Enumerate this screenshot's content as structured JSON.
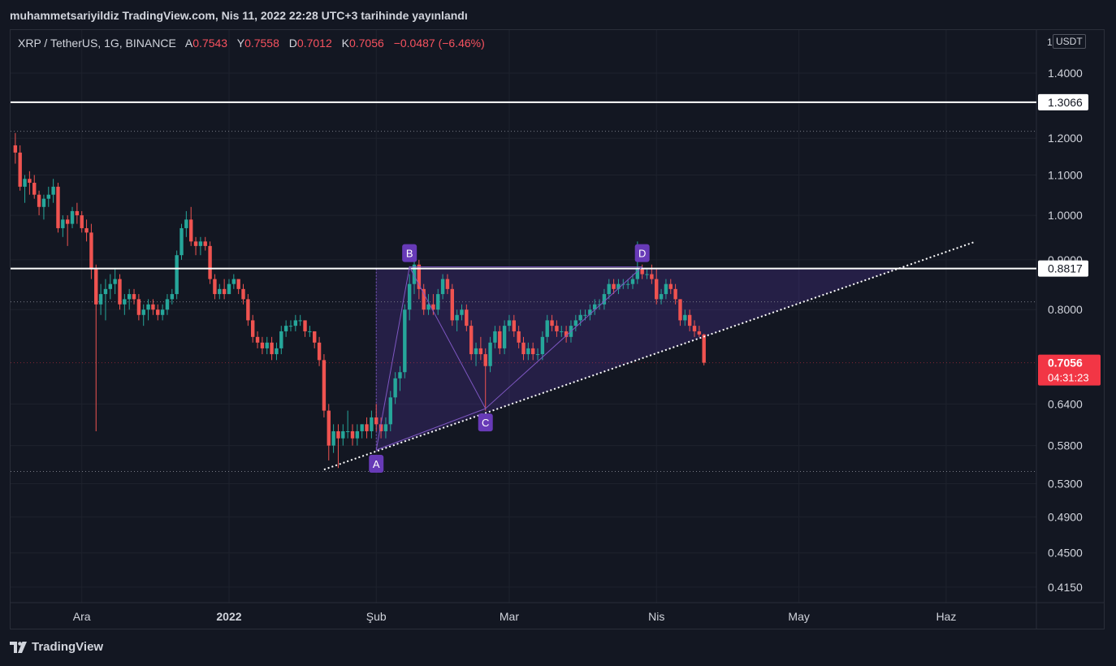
{
  "header": {
    "caption": "muhammetsariyildiz TradingView.com, Nis 11, 2022 22:28 UTC+3 tarihinde yayınlandı"
  },
  "legend": {
    "symbol": "XRP / TetherUS, 1G, BINANCE",
    "open_key": "A",
    "open": "0.7543",
    "high_key": "Y",
    "high": "0.7558",
    "low_key": "D",
    "low": "0.7012",
    "close_key": "K",
    "close": "0.7056",
    "change": "−0.0487 (−6.46%)"
  },
  "unit": {
    "prefix": "1",
    "label": "USDT"
  },
  "footer": {
    "brand": "TradingView"
  },
  "colors": {
    "background": "#131722",
    "up": "#26a69a",
    "down": "#ef5350",
    "pattern_fill": "#6a3fc8",
    "label_bg": "#673ab7",
    "last_price_bg": "#f23645"
  },
  "chart_data": {
    "type": "candlestick",
    "scale": "log",
    "ylim": [
      0.4,
      1.55
    ],
    "y_ticks": [
      "1.4000",
      "1.2000",
      "1.1000",
      "1.0000",
      "0.9000",
      "0.8000",
      "0.6400",
      "0.5800",
      "0.5300",
      "0.4900",
      "0.4500",
      "0.4150"
    ],
    "x_ticks": [
      {
        "label": "Ara",
        "date": "2021-12-01"
      },
      {
        "label": "2022",
        "date": "2022-01-01"
      },
      {
        "label": "Şub",
        "date": "2022-02-01"
      },
      {
        "label": "Mar",
        "date": "2022-03-01"
      },
      {
        "label": "Nis",
        "date": "2022-04-01"
      },
      {
        "label": "May",
        "date": "2022-05-01"
      },
      {
        "label": "Haz",
        "date": "2022-06-01"
      }
    ],
    "date_range": [
      "2021-11-16",
      "2022-06-20"
    ],
    "candles": [
      [
        "2021-11-17",
        1.18,
        1.215,
        1.13,
        1.16
      ],
      [
        "2021-11-18",
        1.16,
        1.18,
        1.06,
        1.07
      ],
      [
        "2021-11-19",
        1.07,
        1.1,
        1.03,
        1.09
      ],
      [
        "2021-11-20",
        1.09,
        1.11,
        1.05,
        1.08
      ],
      [
        "2021-11-21",
        1.08,
        1.1,
        1.04,
        1.05
      ],
      [
        "2021-11-22",
        1.05,
        1.06,
        1.0,
        1.02
      ],
      [
        "2021-11-23",
        1.02,
        1.05,
        0.99,
        1.04
      ],
      [
        "2021-11-24",
        1.04,
        1.07,
        1.02,
        1.05
      ],
      [
        "2021-11-25",
        1.05,
        1.09,
        1.03,
        1.07
      ],
      [
        "2021-11-26",
        1.07,
        1.08,
        0.96,
        0.97
      ],
      [
        "2021-11-27",
        0.97,
        1.0,
        0.95,
        0.99
      ],
      [
        "2021-11-28",
        0.99,
        1.0,
        0.93,
        0.98
      ],
      [
        "2021-11-29",
        0.98,
        1.02,
        0.97,
        1.01
      ],
      [
        "2021-11-30",
        1.01,
        1.03,
        0.98,
        1.0
      ],
      [
        "2021-12-01",
        1.0,
        1.01,
        0.96,
        0.97
      ],
      [
        "2021-12-02",
        0.97,
        0.99,
        0.94,
        0.96
      ],
      [
        "2021-12-03",
        0.96,
        0.98,
        0.86,
        0.88
      ],
      [
        "2021-12-04",
        0.88,
        0.89,
        0.6,
        0.81
      ],
      [
        "2021-12-05",
        0.81,
        0.85,
        0.79,
        0.83
      ],
      [
        "2021-12-06",
        0.83,
        0.86,
        0.78,
        0.84
      ],
      [
        "2021-12-07",
        0.84,
        0.87,
        0.82,
        0.85
      ],
      [
        "2021-12-08",
        0.85,
        0.88,
        0.83,
        0.86
      ],
      [
        "2021-12-09",
        0.86,
        0.87,
        0.8,
        0.81
      ],
      [
        "2021-12-10",
        0.81,
        0.83,
        0.79,
        0.82
      ],
      [
        "2021-12-11",
        0.82,
        0.84,
        0.8,
        0.83
      ],
      [
        "2021-12-12",
        0.83,
        0.84,
        0.81,
        0.82
      ],
      [
        "2021-12-13",
        0.82,
        0.83,
        0.78,
        0.79
      ],
      [
        "2021-12-14",
        0.79,
        0.81,
        0.77,
        0.8
      ],
      [
        "2021-12-15",
        0.8,
        0.82,
        0.78,
        0.81
      ],
      [
        "2021-12-16",
        0.81,
        0.82,
        0.79,
        0.8
      ],
      [
        "2021-12-17",
        0.8,
        0.81,
        0.78,
        0.79
      ],
      [
        "2021-12-18",
        0.79,
        0.81,
        0.78,
        0.8
      ],
      [
        "2021-12-19",
        0.8,
        0.83,
        0.79,
        0.82
      ],
      [
        "2021-12-20",
        0.82,
        0.84,
        0.81,
        0.83
      ],
      [
        "2021-12-21",
        0.83,
        0.92,
        0.82,
        0.91
      ],
      [
        "2021-12-22",
        0.91,
        0.98,
        0.9,
        0.97
      ],
      [
        "2021-12-23",
        0.97,
        1.01,
        0.95,
        0.99
      ],
      [
        "2021-12-24",
        0.99,
        1.02,
        0.93,
        0.94
      ],
      [
        "2021-12-25",
        0.94,
        0.95,
        0.91,
        0.93
      ],
      [
        "2021-12-26",
        0.93,
        0.95,
        0.91,
        0.94
      ],
      [
        "2021-12-27",
        0.94,
        0.95,
        0.92,
        0.93
      ],
      [
        "2021-12-28",
        0.93,
        0.94,
        0.85,
        0.86
      ],
      [
        "2021-12-29",
        0.86,
        0.87,
        0.82,
        0.83
      ],
      [
        "2021-12-30",
        0.83,
        0.85,
        0.82,
        0.84
      ],
      [
        "2021-12-31",
        0.84,
        0.86,
        0.82,
        0.83
      ],
      [
        "2022-01-01",
        0.83,
        0.86,
        0.83,
        0.85
      ],
      [
        "2022-01-02",
        0.85,
        0.87,
        0.84,
        0.86
      ],
      [
        "2022-01-03",
        0.86,
        0.86,
        0.83,
        0.84
      ],
      [
        "2022-01-04",
        0.84,
        0.85,
        0.81,
        0.82
      ],
      [
        "2022-01-05",
        0.82,
        0.83,
        0.77,
        0.78
      ],
      [
        "2022-01-06",
        0.78,
        0.79,
        0.74,
        0.75
      ],
      [
        "2022-01-07",
        0.75,
        0.76,
        0.73,
        0.74
      ],
      [
        "2022-01-08",
        0.74,
        0.75,
        0.72,
        0.73
      ],
      [
        "2022-01-09",
        0.73,
        0.75,
        0.72,
        0.74
      ],
      [
        "2022-01-10",
        0.74,
        0.75,
        0.71,
        0.72
      ],
      [
        "2022-01-11",
        0.72,
        0.74,
        0.71,
        0.73
      ],
      [
        "2022-01-12",
        0.73,
        0.77,
        0.72,
        0.76
      ],
      [
        "2022-01-13",
        0.76,
        0.78,
        0.75,
        0.77
      ],
      [
        "2022-01-14",
        0.77,
        0.78,
        0.76,
        0.77
      ],
      [
        "2022-01-15",
        0.77,
        0.79,
        0.76,
        0.78
      ],
      [
        "2022-01-16",
        0.78,
        0.79,
        0.77,
        0.78
      ],
      [
        "2022-01-17",
        0.78,
        0.78,
        0.75,
        0.76
      ],
      [
        "2022-01-18",
        0.76,
        0.77,
        0.75,
        0.76
      ],
      [
        "2022-01-19",
        0.76,
        0.76,
        0.73,
        0.74
      ],
      [
        "2022-01-20",
        0.74,
        0.75,
        0.7,
        0.71
      ],
      [
        "2022-01-21",
        0.71,
        0.72,
        0.62,
        0.63
      ],
      [
        "2022-01-22",
        0.63,
        0.64,
        0.56,
        0.58
      ],
      [
        "2022-01-23",
        0.58,
        0.61,
        0.57,
        0.6
      ],
      [
        "2022-01-24",
        0.6,
        0.61,
        0.55,
        0.59
      ],
      [
        "2022-01-25",
        0.59,
        0.61,
        0.58,
        0.6
      ],
      [
        "2022-01-26",
        0.6,
        0.63,
        0.59,
        0.6
      ],
      [
        "2022-01-27",
        0.6,
        0.61,
        0.58,
        0.59
      ],
      [
        "2022-01-28",
        0.59,
        0.61,
        0.58,
        0.6
      ],
      [
        "2022-01-29",
        0.6,
        0.61,
        0.59,
        0.61
      ],
      [
        "2022-01-30",
        0.61,
        0.62,
        0.59,
        0.6
      ],
      [
        "2022-01-31",
        0.6,
        0.63,
        0.59,
        0.62
      ],
      [
        "2022-02-01",
        0.62,
        0.64,
        0.6,
        0.61
      ],
      [
        "2022-02-02",
        0.61,
        0.62,
        0.59,
        0.6
      ],
      [
        "2022-02-03",
        0.6,
        0.62,
        0.59,
        0.61
      ],
      [
        "2022-02-04",
        0.61,
        0.66,
        0.6,
        0.65
      ],
      [
        "2022-02-05",
        0.65,
        0.69,
        0.64,
        0.68
      ],
      [
        "2022-02-06",
        0.68,
        0.7,
        0.66,
        0.69
      ],
      [
        "2022-02-07",
        0.69,
        0.81,
        0.68,
        0.8
      ],
      [
        "2022-02-08",
        0.8,
        0.87,
        0.78,
        0.85
      ],
      [
        "2022-02-09",
        0.85,
        0.91,
        0.83,
        0.89
      ],
      [
        "2022-02-10",
        0.89,
        0.9,
        0.82,
        0.84
      ],
      [
        "2022-02-11",
        0.84,
        0.85,
        0.79,
        0.8
      ],
      [
        "2022-02-12",
        0.8,
        0.83,
        0.79,
        0.81
      ],
      [
        "2022-02-13",
        0.81,
        0.83,
        0.79,
        0.8
      ],
      [
        "2022-02-14",
        0.8,
        0.84,
        0.79,
        0.83
      ],
      [
        "2022-02-15",
        0.83,
        0.87,
        0.82,
        0.86
      ],
      [
        "2022-02-16",
        0.86,
        0.87,
        0.83,
        0.84
      ],
      [
        "2022-02-17",
        0.84,
        0.85,
        0.77,
        0.78
      ],
      [
        "2022-02-18",
        0.78,
        0.8,
        0.76,
        0.79
      ],
      [
        "2022-02-19",
        0.79,
        0.81,
        0.78,
        0.8
      ],
      [
        "2022-02-20",
        0.8,
        0.81,
        0.76,
        0.77
      ],
      [
        "2022-02-21",
        0.77,
        0.78,
        0.71,
        0.72
      ],
      [
        "2022-02-22",
        0.72,
        0.74,
        0.7,
        0.73
      ],
      [
        "2022-02-23",
        0.73,
        0.75,
        0.71,
        0.72
      ],
      [
        "2022-02-24",
        0.72,
        0.73,
        0.63,
        0.7
      ],
      [
        "2022-02-25",
        0.7,
        0.75,
        0.69,
        0.74
      ],
      [
        "2022-02-26",
        0.74,
        0.77,
        0.73,
        0.76
      ],
      [
        "2022-02-27",
        0.76,
        0.77,
        0.72,
        0.73
      ],
      [
        "2022-02-28",
        0.73,
        0.78,
        0.72,
        0.77
      ],
      [
        "2022-03-01",
        0.77,
        0.79,
        0.76,
        0.78
      ],
      [
        "2022-03-02",
        0.78,
        0.79,
        0.75,
        0.76
      ],
      [
        "2022-03-03",
        0.76,
        0.77,
        0.73,
        0.74
      ],
      [
        "2022-03-04",
        0.74,
        0.75,
        0.71,
        0.72
      ],
      [
        "2022-03-05",
        0.72,
        0.74,
        0.71,
        0.73
      ],
      [
        "2022-03-06",
        0.73,
        0.74,
        0.71,
        0.72
      ],
      [
        "2022-03-07",
        0.72,
        0.73,
        0.71,
        0.72
      ],
      [
        "2022-03-08",
        0.72,
        0.76,
        0.71,
        0.75
      ],
      [
        "2022-03-09",
        0.75,
        0.79,
        0.74,
        0.78
      ],
      [
        "2022-03-10",
        0.78,
        0.79,
        0.76,
        0.77
      ],
      [
        "2022-03-11",
        0.77,
        0.78,
        0.75,
        0.76
      ],
      [
        "2022-03-12",
        0.76,
        0.77,
        0.75,
        0.76
      ],
      [
        "2022-03-13",
        0.76,
        0.77,
        0.74,
        0.75
      ],
      [
        "2022-03-14",
        0.75,
        0.78,
        0.74,
        0.77
      ],
      [
        "2022-03-15",
        0.77,
        0.79,
        0.76,
        0.78
      ],
      [
        "2022-03-16",
        0.78,
        0.8,
        0.77,
        0.79
      ],
      [
        "2022-03-17",
        0.79,
        0.8,
        0.78,
        0.79
      ],
      [
        "2022-03-18",
        0.79,
        0.81,
        0.78,
        0.8
      ],
      [
        "2022-03-19",
        0.8,
        0.82,
        0.79,
        0.81
      ],
      [
        "2022-03-20",
        0.81,
        0.82,
        0.8,
        0.81
      ],
      [
        "2022-03-21",
        0.81,
        0.84,
        0.8,
        0.83
      ],
      [
        "2022-03-22",
        0.83,
        0.86,
        0.82,
        0.85
      ],
      [
        "2022-03-23",
        0.85,
        0.86,
        0.83,
        0.84
      ],
      [
        "2022-03-24",
        0.84,
        0.86,
        0.83,
        0.85
      ],
      [
        "2022-03-25",
        0.85,
        0.86,
        0.84,
        0.85
      ],
      [
        "2022-03-26",
        0.85,
        0.86,
        0.84,
        0.85
      ],
      [
        "2022-03-27",
        0.85,
        0.87,
        0.84,
        0.86
      ],
      [
        "2022-03-28",
        0.86,
        0.94,
        0.85,
        0.88
      ],
      [
        "2022-03-29",
        0.88,
        0.89,
        0.86,
        0.87
      ],
      [
        "2022-03-30",
        0.87,
        0.88,
        0.86,
        0.87
      ],
      [
        "2022-03-31",
        0.87,
        0.89,
        0.85,
        0.86
      ],
      [
        "2022-04-01",
        0.86,
        0.88,
        0.81,
        0.82
      ],
      [
        "2022-04-02",
        0.82,
        0.84,
        0.81,
        0.83
      ],
      [
        "2022-04-03",
        0.83,
        0.86,
        0.82,
        0.85
      ],
      [
        "2022-04-04",
        0.85,
        0.86,
        0.83,
        0.84
      ],
      [
        "2022-04-05",
        0.84,
        0.85,
        0.81,
        0.82
      ],
      [
        "2022-04-06",
        0.82,
        0.82,
        0.77,
        0.78
      ],
      [
        "2022-04-07",
        0.78,
        0.8,
        0.77,
        0.79
      ],
      [
        "2022-04-08",
        0.79,
        0.8,
        0.76,
        0.77
      ],
      [
        "2022-04-09",
        0.77,
        0.78,
        0.75,
        0.76
      ],
      [
        "2022-04-10",
        0.76,
        0.77,
        0.75,
        0.7543
      ],
      [
        "2022-04-11",
        0.7543,
        0.7558,
        0.7012,
        0.7056
      ]
    ],
    "horizontal_levels": [
      {
        "value": 1.3066,
        "label": "1.3066",
        "style": "solid-white"
      },
      {
        "value": 0.8817,
        "label": "0.8817",
        "style": "solid-white"
      }
    ],
    "dotted_levels": [
      1.22,
      0.815,
      0.7056,
      0.5455
    ],
    "last_price": {
      "value": "0.7056",
      "countdown": "04:31:23"
    },
    "trendline": {
      "from": [
        "2022-01-21",
        0.548
      ],
      "to": [
        "2022-06-07",
        0.939
      ]
    },
    "pattern_points": [
      {
        "label": "A",
        "date": "2022-02-01",
        "value": 0.574
      },
      {
        "label": "B",
        "date": "2022-02-08",
        "value": 0.885
      },
      {
        "label": "C",
        "date": "2022-02-24",
        "value": 0.633
      },
      {
        "label": "D",
        "date": "2022-03-29",
        "value": 0.885
      }
    ],
    "pattern_zone": {
      "start": "2022-02-01",
      "end": "2022-05-23",
      "top": 0.8817
    }
  }
}
